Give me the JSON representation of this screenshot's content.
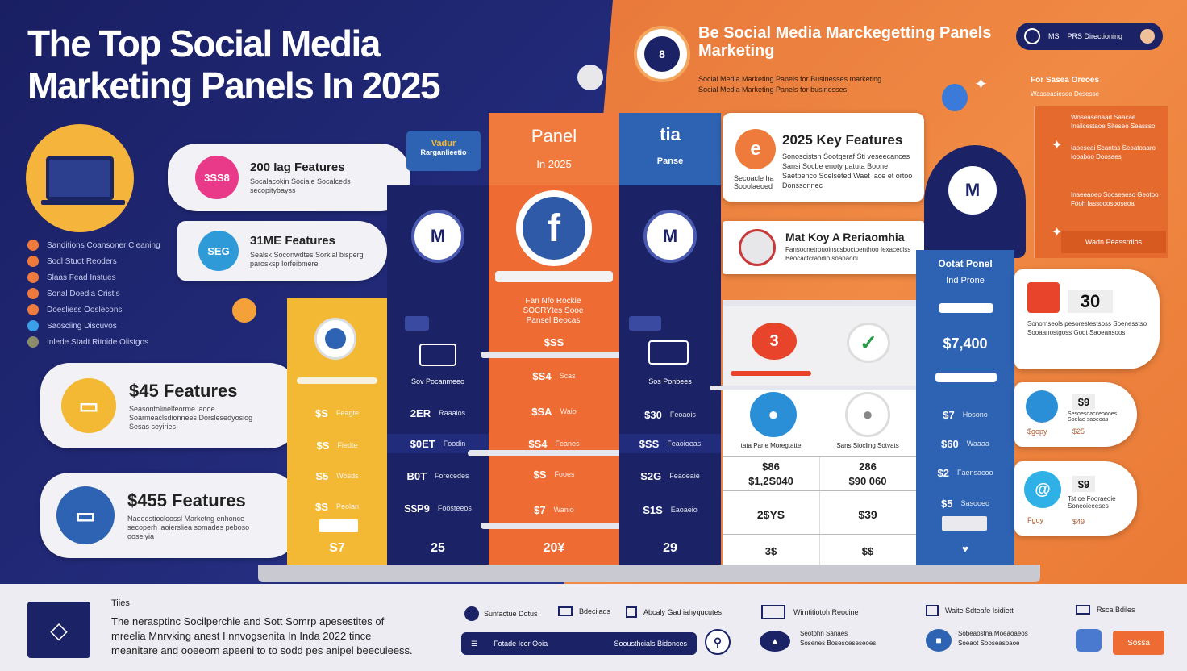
{
  "title": "The Top Social Media Marketing Panels In 2025",
  "header_right": {
    "title_line1": "Be Social Media Marckegetting Panels",
    "title_line2": "Marketing",
    "subtitle_line1": "Social Media Marketing Panels for Businesses marketing",
    "subtitle_line2": "Social Media Marketing Panels for businesses",
    "top_pill_text": "PRS Directioning",
    "top_pill_code": "MS"
  },
  "bullets": [
    "Sanditions Coansoner Cleaning",
    "Sodl Stuot Reoders",
    "Slaas Fead Instues",
    "Sonal Doedla Cristis",
    "Doesliess Ooslecons",
    "Saosciing Discuvos",
    "Inlede Stadt Ritoide Olistgos"
  ],
  "pills": [
    {
      "badge": "3SS8",
      "title": "200 Iag Features",
      "desc": "Socalacokin Sociale Socalceds secopitybayss"
    },
    {
      "badge": "SEG",
      "title": "31ME Features",
      "desc": "Sealsk Soconwdtes Sorkial bisperg parosksp Iorfeibmere"
    },
    {
      "badge": "",
      "title": "$45 Features",
      "desc": "Seasontolinelfeorme laooe Soarmeaclsdionnees Dorslesedyosiog Sesas seyiries"
    },
    {
      "badge": "",
      "title": "$455 Features",
      "desc": "Naoeestiocloossl Marketng enhonce secoperh laoiersliea somades peboso ooselyia"
    }
  ],
  "columns": [
    {
      "head1": "Vadur",
      "head2": "Rarganlieetio",
      "mid": "",
      "price": "",
      "rows": [
        "$S",
        "$S",
        "S5",
        "$S",
        "$S",
        "S7"
      ],
      "footer": "S7"
    },
    {
      "head1": "",
      "head2": "",
      "mid": "Sov Pocanmeeo",
      "rows": [
        "2ER",
        "$0ET",
        "B0T",
        "S$P9"
      ],
      "footer": "25"
    },
    {
      "head1": "Panel",
      "head2": "In 2025",
      "mid": "Fan Nfo Rockie SOCRYtes Sooe Pansel Beocas",
      "price": "$SS",
      "rows": [
        "$S4",
        "$SA",
        "$S4",
        "$S",
        "$7"
      ],
      "footer": "20¥"
    },
    {
      "head1": "tia",
      "head2": "Panse",
      "mid": "Sos Ponbees",
      "rows": [
        "$30",
        "$SS",
        "S2G",
        "S1S"
      ],
      "footer": "29"
    }
  ],
  "features_card": {
    "title": "2025 Key Features",
    "left_label": "Secoacle ha Sooolaeoed",
    "desc": "Sonoscistsn Sootgeraf Sti veseecances Sansi Socbe enoty patuta Boone Saetpenco Soelseted Waet Iace et ortoo Donssonnec"
  },
  "relation_card": {
    "title": "Mat Koy A Reriaomhia",
    "desc": "Fansocnetrouoinscsboctoenthoo Iexaceciss Beocactcraodio soanaoni"
  },
  "feature_grid": {
    "labels": [
      "tata Pane Moregtatte",
      "Sans Siocling Sotvats"
    ],
    "values_a": [
      "$86",
      "$1,2S040"
    ],
    "values_b": [
      "286",
      "$90 060"
    ],
    "row3": [
      "2$YS",
      "$39"
    ],
    "row4": [
      "3$",
      "$$"
    ]
  },
  "blue_col": {
    "title1": "Ootat Ponel",
    "title2": "Ind Prone",
    "price": "$7,400",
    "rows": [
      "$7",
      "$60",
      "$2",
      "$5"
    ],
    "row_labels": [
      "Hosono",
      "Waaaa",
      "Faensacoo",
      "Sasooeo"
    ]
  },
  "side_list": {
    "heading": "For Sasea Oreoes",
    "sub": "Wasseasieseo Desesse",
    "items": [
      "Woseasenaad Saacae Inalicestaoe Siteseo Seassso",
      "Iaoeseai Scantas Seoatoaaro Iooaboo Doosaes",
      "Inaeeaoeo Sooseaeso Geotoo Fooh Iassooosooseoa"
    ],
    "button": "Wadn Peassrdlos"
  },
  "score_card": {
    "value": "30",
    "desc": "Sonomseols pesorestestsoss Soenesstso Sooaanostgoss Godt Saoeansoos"
  },
  "right_cards": [
    {
      "value": "$9",
      "desc": "Sesoesoacceoooes Soelae saoeoas",
      "foot1": "$gopy",
      "foot2": "$25"
    },
    {
      "value": "$9",
      "desc": "Tst oe Fooraeoie Soneoieeeses",
      "foot1": "Fgoy",
      "foot2": "$49"
    }
  ],
  "footer": {
    "label": "Tiies",
    "text_line1": "The nerasptinc Socilperchie and Sott Somrp apesestites of",
    "text_line2": "mreelia Mnrvking anest I nnvogsenita In Inda 2022 tince",
    "text_line3": "meanitare and ooeeorn apeeni to to sodd pes anipel beecuieess.",
    "items": [
      "Sunfactue Dotus",
      "Bdeciiads",
      "Abcaly Gad iahyqucutes",
      "Wirntitiotoh Reocine",
      "Waite Sdteafe Isidiett",
      "Rsca Bdiles"
    ],
    "bar_left": "Fotade Icer Ooia",
    "bar_right": "Soousthcials Bidonces",
    "detail_a1": "Seotohn Sanaes",
    "detail_a2": "Sosenes Bosesoeseseoes",
    "detail_b1": "Sobeaostna Moeaoaeos",
    "detail_b2": "Soeaot Sooseasoaoe",
    "button": "Sossa"
  },
  "colors": {
    "navy": "#1b2366",
    "orange": "#ee7b3b",
    "yellow": "#f3b935",
    "blue": "#2e63b3"
  }
}
